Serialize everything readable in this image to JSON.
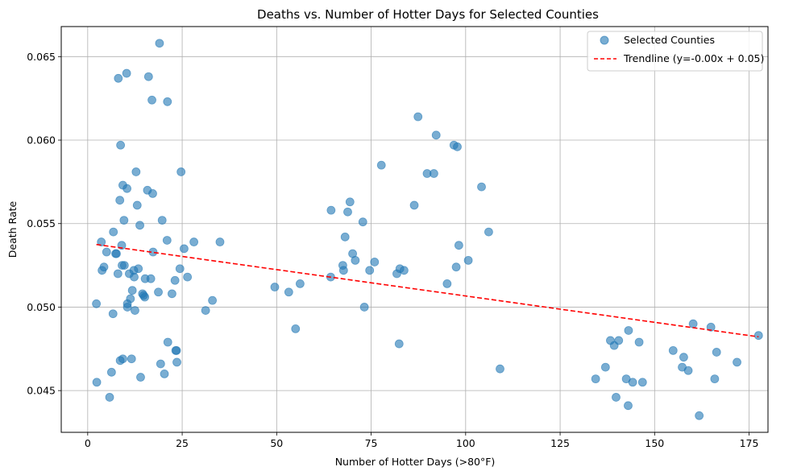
{
  "chart_data": {
    "type": "scatter",
    "title": "Deaths vs. Number of Hotter Days for Selected Counties",
    "xlabel": "Number of Hotter Days (>80°F)",
    "ylabel": "Death Rate",
    "xlim": [
      -7,
      180
    ],
    "ylim": [
      0.0425,
      0.0668
    ],
    "xticks": [
      0,
      25,
      50,
      75,
      100,
      125,
      150,
      175
    ],
    "yticks": [
      0.045,
      0.05,
      0.055,
      0.06,
      0.065
    ],
    "xtick_labels": [
      "0",
      "25",
      "50",
      "75",
      "100",
      "125",
      "150",
      "175"
    ],
    "ytick_labels": [
      "0.045",
      "0.050",
      "0.055",
      "0.060",
      "0.065"
    ],
    "grid": true,
    "legend_position": "top-right",
    "series": [
      {
        "name": "Selected Counties",
        "kind": "scatter",
        "color": "#1f77b4",
        "points": [
          [
            2.3,
            0.0502
          ],
          [
            2.4,
            0.0455
          ],
          [
            3.6,
            0.0539
          ],
          [
            3.8,
            0.0522
          ],
          [
            4.3,
            0.0524
          ],
          [
            5.0,
            0.0533
          ],
          [
            5.8,
            0.0446
          ],
          [
            6.3,
            0.0461
          ],
          [
            6.7,
            0.0496
          ],
          [
            6.8,
            0.0545
          ],
          [
            7.4,
            0.0532
          ],
          [
            7.6,
            0.0532
          ],
          [
            8.0,
            0.052
          ],
          [
            8.1,
            0.0637
          ],
          [
            8.5,
            0.0564
          ],
          [
            8.6,
            0.0468
          ],
          [
            8.7,
            0.0597
          ],
          [
            9.0,
            0.0537
          ],
          [
            9.1,
            0.0525
          ],
          [
            9.3,
            0.0469
          ],
          [
            9.3,
            0.0573
          ],
          [
            9.6,
            0.0552
          ],
          [
            9.7,
            0.0525
          ],
          [
            10.3,
            0.064
          ],
          [
            10.4,
            0.0571
          ],
          [
            10.5,
            0.0502
          ],
          [
            10.5,
            0.05
          ],
          [
            11.0,
            0.052
          ],
          [
            11.3,
            0.0505
          ],
          [
            11.6,
            0.0469
          ],
          [
            11.8,
            0.051
          ],
          [
            12.2,
            0.0522
          ],
          [
            12.3,
            0.0518
          ],
          [
            12.5,
            0.0498
          ],
          [
            12.8,
            0.0581
          ],
          [
            13.1,
            0.0561
          ],
          [
            13.4,
            0.0523
          ],
          [
            13.8,
            0.0549
          ],
          [
            14.0,
            0.0458
          ],
          [
            14.5,
            0.0508
          ],
          [
            14.8,
            0.0507
          ],
          [
            15.1,
            0.0506
          ],
          [
            15.2,
            0.0517
          ],
          [
            15.8,
            0.057
          ],
          [
            16.1,
            0.0638
          ],
          [
            16.7,
            0.0517
          ],
          [
            17.0,
            0.0624
          ],
          [
            17.2,
            0.0568
          ],
          [
            17.3,
            0.0533
          ],
          [
            18.7,
            0.0509
          ],
          [
            19.0,
            0.0658
          ],
          [
            19.3,
            0.0466
          ],
          [
            19.7,
            0.0552
          ],
          [
            20.3,
            0.046
          ],
          [
            21.0,
            0.054
          ],
          [
            21.1,
            0.0623
          ],
          [
            21.2,
            0.0479
          ],
          [
            22.3,
            0.0508
          ],
          [
            23.1,
            0.0516
          ],
          [
            23.3,
            0.0474
          ],
          [
            23.5,
            0.0474
          ],
          [
            23.6,
            0.0467
          ],
          [
            24.4,
            0.0523
          ],
          [
            24.7,
            0.0581
          ],
          [
            25.5,
            0.0535
          ],
          [
            26.4,
            0.0518
          ],
          [
            28.1,
            0.0539
          ],
          [
            31.2,
            0.0498
          ],
          [
            33.0,
            0.0504
          ],
          [
            35.0,
            0.0539
          ],
          [
            49.5,
            0.0512
          ],
          [
            53.2,
            0.0509
          ],
          [
            55.0,
            0.0487
          ],
          [
            56.2,
            0.0514
          ],
          [
            64.3,
            0.0518
          ],
          [
            64.4,
            0.0558
          ],
          [
            67.5,
            0.0525
          ],
          [
            67.7,
            0.0522
          ],
          [
            68.1,
            0.0542
          ],
          [
            68.8,
            0.0557
          ],
          [
            69.4,
            0.0563
          ],
          [
            70.1,
            0.0532
          ],
          [
            70.8,
            0.0528
          ],
          [
            72.8,
            0.0551
          ],
          [
            73.2,
            0.05
          ],
          [
            74.6,
            0.0522
          ],
          [
            75.9,
            0.0527
          ],
          [
            77.7,
            0.0585
          ],
          [
            81.8,
            0.052
          ],
          [
            82.4,
            0.0478
          ],
          [
            82.6,
            0.0523
          ],
          [
            83.7,
            0.0522
          ],
          [
            86.4,
            0.0561
          ],
          [
            87.4,
            0.0614
          ],
          [
            89.8,
            0.058
          ],
          [
            91.6,
            0.058
          ],
          [
            92.2,
            0.0603
          ],
          [
            95.1,
            0.0514
          ],
          [
            96.9,
            0.0597
          ],
          [
            97.5,
            0.0524
          ],
          [
            97.8,
            0.0596
          ],
          [
            98.2,
            0.0537
          ],
          [
            104.2,
            0.0572
          ],
          [
            100.7,
            0.0528
          ],
          [
            106.1,
            0.0545
          ],
          [
            109.1,
            0.0463
          ],
          [
            134.4,
            0.0457
          ],
          [
            137.0,
            0.0464
          ],
          [
            138.3,
            0.048
          ],
          [
            139.3,
            0.0477
          ],
          [
            139.8,
            0.0446
          ],
          [
            140.5,
            0.048
          ],
          [
            142.5,
            0.0457
          ],
          [
            143.0,
            0.0441
          ],
          [
            143.1,
            0.0486
          ],
          [
            144.2,
            0.0455
          ],
          [
            145.9,
            0.0479
          ],
          [
            146.8,
            0.0455
          ],
          [
            154.9,
            0.0474
          ],
          [
            157.3,
            0.0464
          ],
          [
            157.7,
            0.047
          ],
          [
            158.9,
            0.0462
          ],
          [
            160.2,
            0.049
          ],
          [
            161.8,
            0.0435
          ],
          [
            164.9,
            0.0488
          ],
          [
            165.9,
            0.0457
          ],
          [
            166.4,
            0.0473
          ],
          [
            171.8,
            0.0467
          ],
          [
            177.5,
            0.0483
          ]
        ]
      },
      {
        "name": "Trendline (y=-0.00x + 0.05)",
        "kind": "line",
        "style": "dashed",
        "color": "#ff0000",
        "x": [
          2.3,
          177.5
        ],
        "y": [
          0.05375,
          0.04822
        ]
      }
    ]
  }
}
